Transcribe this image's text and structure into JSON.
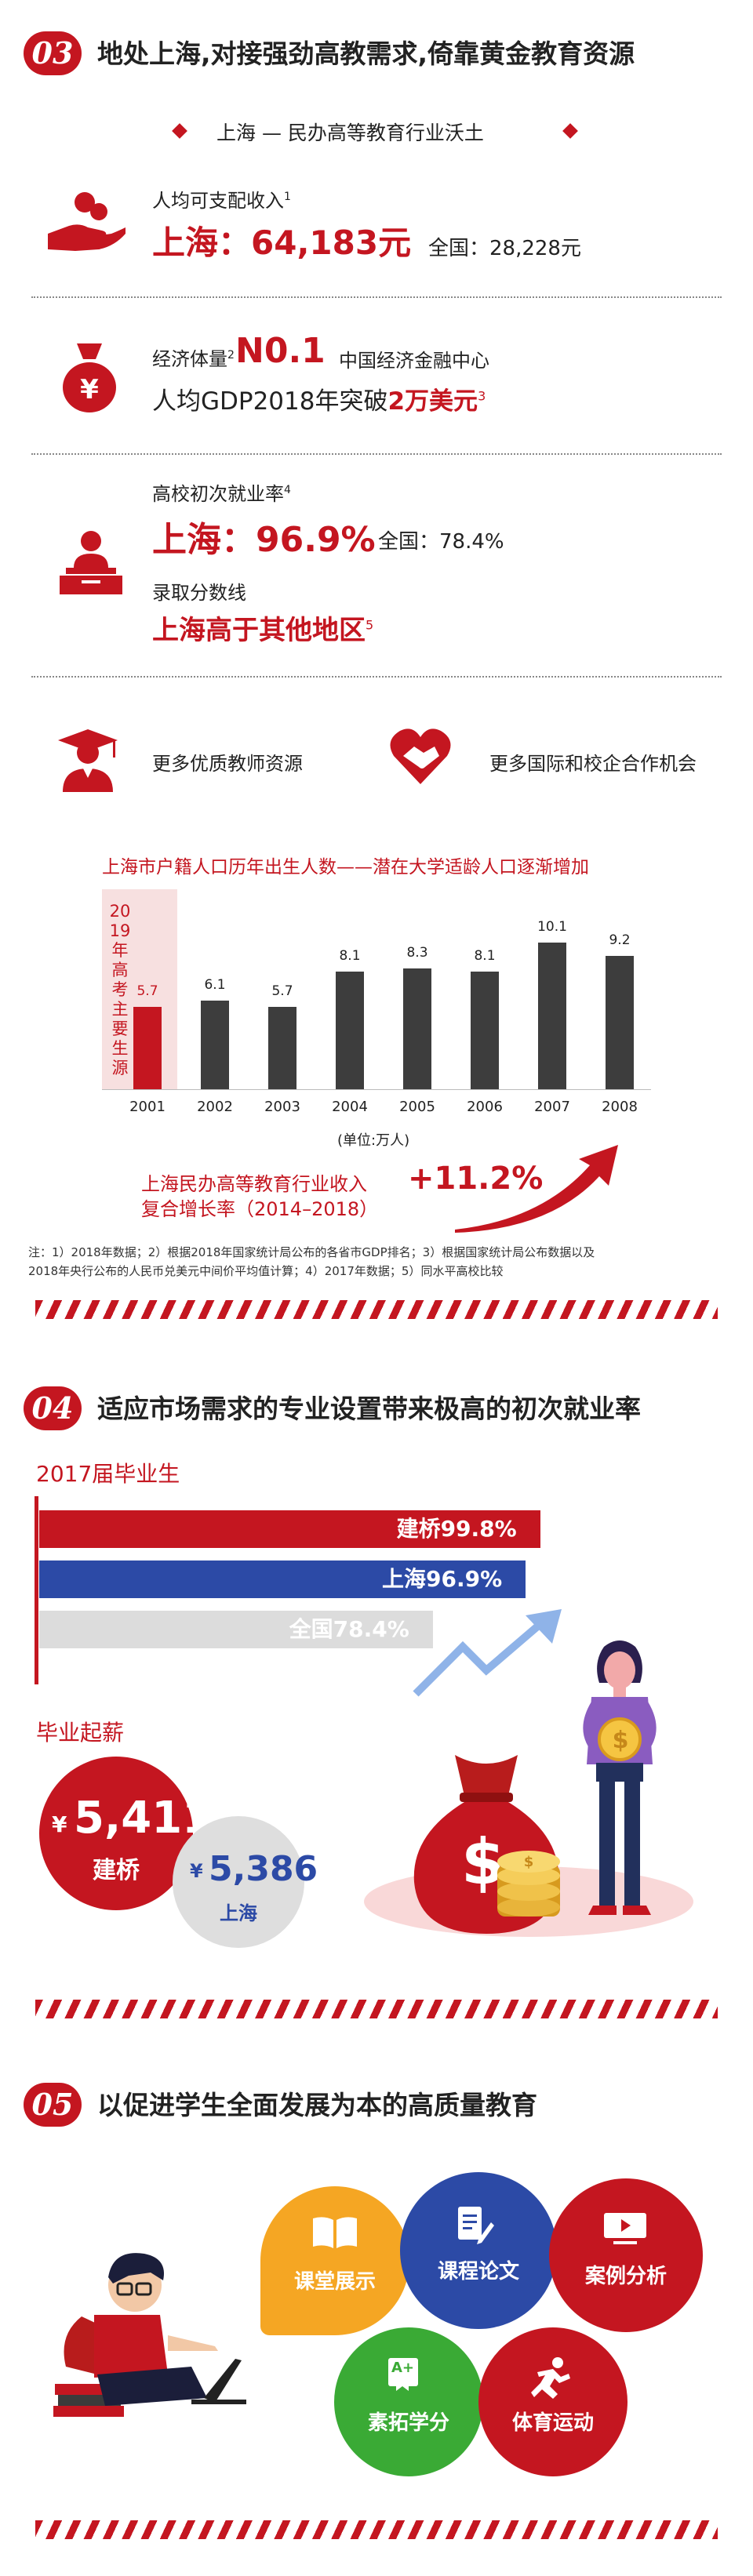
{
  "s03": {
    "badge": "03",
    "title": "地处上海,对接强劲高教需求,倚靠黄金教育资源",
    "subtitle": "上海 — 民办高等教育行业沃土",
    "income_label": "人均可支配收入",
    "income_sup": "1",
    "income_value": "上海：64,183元",
    "income_nat": "全国：28,228元",
    "econ_label": "经济体量",
    "econ_sup": "2",
    "econ_rank": "N0.1",
    "econ_center": "中国经济金融中心",
    "gdp_text": "人均GDP2018年突破",
    "gdp_strong": "2万美元",
    "gdp_sup": "3",
    "emp_label": "高校初次就业率",
    "emp_sup": "4",
    "emp_value": "上海：96.9%",
    "emp_nat": "全国：78.4%",
    "admit_label": "录取分数线",
    "admit_value": "上海高于其他地区",
    "admit_sup": "5",
    "teachers": "更多优质教师资源",
    "coop": "更多国际和校企合作机会",
    "chart_title": "上海市户籍人口历年出生人数——潜在大学适龄人口逐渐增加",
    "chart_band": "2019年高考主要生源",
    "chart_unit": "(单位:万人)",
    "growth_label_1": "上海民办高等教育行业收入",
    "growth_label_2": "复合增长率（2014–2018）",
    "growth_value": "+11.2%",
    "note_1": "注：1）2018年数据；2）根据2018年国家统计局公布的各省市GDP排名；3）根据国家统计局公布数据以及",
    "note_2": "2018年央行公布的人民币兑美元中间价平均值计算；4）2017年数据；5）同水平高校比较"
  },
  "chart_data": {
    "type": "bar",
    "title": "上海市户籍人口历年出生人数——潜在大学适龄人口逐渐增加",
    "categories": [
      "2001",
      "2002",
      "2003",
      "2004",
      "2005",
      "2006",
      "2007",
      "2008"
    ],
    "values": [
      5.7,
      6.1,
      5.7,
      8.1,
      8.3,
      8.1,
      10.1,
      9.2
    ],
    "value_labels": [
      "5.7",
      "6.1",
      "5.7",
      "8.1",
      "8.3",
      "8.1",
      "10.1",
      "9.2"
    ],
    "unit": "(单位:万人)",
    "highlight_index": 0,
    "colors": {
      "bar": "#3d3d3d",
      "highlight": "#c41620",
      "band": "#f7e0e0"
    }
  },
  "s04": {
    "badge": "04",
    "title": "适应市场需求的专业设置带来极高的初次就业率",
    "grad_label": "2017届毕业生",
    "bars": [
      {
        "label": "建桥99.8%",
        "value": 99.8,
        "color": "#c41620"
      },
      {
        "label": "上海96.9%",
        "value": 96.9,
        "color": "#2c4aa6"
      },
      {
        "label": "全国78.4%",
        "value": 78.4,
        "color": "#dcdcdc"
      }
    ],
    "salary_label": "毕业起薪",
    "salary_jq_value": "5,411",
    "salary_jq_name": "建桥",
    "salary_sh_value": "5,386",
    "salary_sh_name": "上海",
    "yen": "¥",
    "bag_symbol": "$",
    "coin_symbol": "$"
  },
  "s05": {
    "badge": "05",
    "title": "以促进学生全面发展为本的高质量教育",
    "items": [
      {
        "label": "课堂展示",
        "color": "#f5a623",
        "icon": "book-icon"
      },
      {
        "label": "课程论文",
        "color": "#2c4aa6",
        "icon": "paper-edit-icon"
      },
      {
        "label": "案例分析",
        "color": "#c41620",
        "icon": "video-icon"
      },
      {
        "label": "素拓学分",
        "color": "#3aaa35",
        "icon": "certificate-icon"
      },
      {
        "label": "体育运动",
        "color": "#c41620",
        "icon": "runner-icon"
      }
    ],
    "grade_mark": "A+"
  },
  "colors": {
    "accent": "#c41620",
    "blue": "#2c4aa6",
    "gray": "#dcdcdc"
  }
}
